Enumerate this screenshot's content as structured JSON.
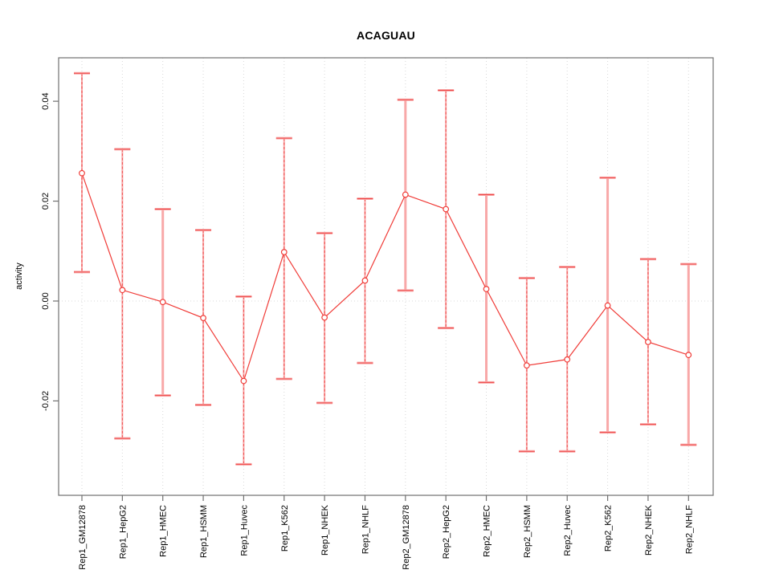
{
  "figure": {
    "background": "#ffffff"
  },
  "chart_data": {
    "type": "line",
    "title": "ACAGUAU",
    "xlabel": "",
    "ylabel": "activity",
    "legend": "none",
    "categories": [
      "Rep1_GM12878",
      "Rep1_HepG2",
      "Rep1_HMEC",
      "Rep1_HSMM",
      "Rep1_Huvec",
      "Rep1_K562",
      "Rep1_NHEK",
      "Rep1_NHLF",
      "Rep2_GM12878",
      "Rep2_HepG2",
      "Rep2_HMEC",
      "Rep2_HSMM",
      "Rep2_Huvec",
      "Rep2_K562",
      "Rep2_NHEK",
      "Rep2_NHLF"
    ],
    "series": [
      {
        "name": "activity",
        "marker": "open-circle",
        "values": [
          0.0256,
          0.0022,
          -0.0002,
          -0.0034,
          -0.016,
          0.0098,
          -0.0033,
          0.0041,
          0.0213,
          0.0184,
          0.0024,
          -0.0129,
          -0.0117,
          -0.0009,
          -0.0082,
          -0.0108
        ],
        "err_high": [
          0.0456,
          0.0304,
          0.0184,
          0.0142,
          0.0009,
          0.0326,
          0.0136,
          0.0205,
          0.0403,
          0.0422,
          0.0213,
          0.0046,
          0.0068,
          0.0247,
          0.0084,
          0.0074
        ],
        "err_low": [
          0.0058,
          -0.0275,
          -0.0189,
          -0.0208,
          -0.0327,
          -0.0156,
          -0.0204,
          -0.0124,
          0.0021,
          -0.0054,
          -0.0163,
          -0.0301,
          -0.0301,
          -0.0263,
          -0.0247,
          -0.0288
        ],
        "bar_style": [
          "dashed",
          "dashed",
          "solid",
          "dashed",
          "dashed",
          "dashed",
          "dashed",
          "dashed",
          "solid",
          "dashed",
          "solid",
          "dashed",
          "dashed",
          "solid",
          "dashed",
          "solid"
        ]
      }
    ],
    "yticks": [
      -0.02,
      0.0,
      0.02,
      0.04
    ],
    "ytick_labels": [
      "-0.02",
      "0.00",
      "0.02",
      "0.04"
    ],
    "ylim": [
      -0.0389,
      0.0487
    ],
    "grid": {
      "vertical_at_categories": true,
      "horizontal_at_zero": true,
      "style": "dotted"
    },
    "colors": {
      "line": "#f03c38",
      "point": "#f03c38",
      "err_bar_outer": "#f8a8a8",
      "err_bar_inner": "#ee3c3c",
      "grid": "#d8d8d8",
      "axis": "#707070",
      "text": "#000000",
      "background": "#ffffff"
    }
  }
}
